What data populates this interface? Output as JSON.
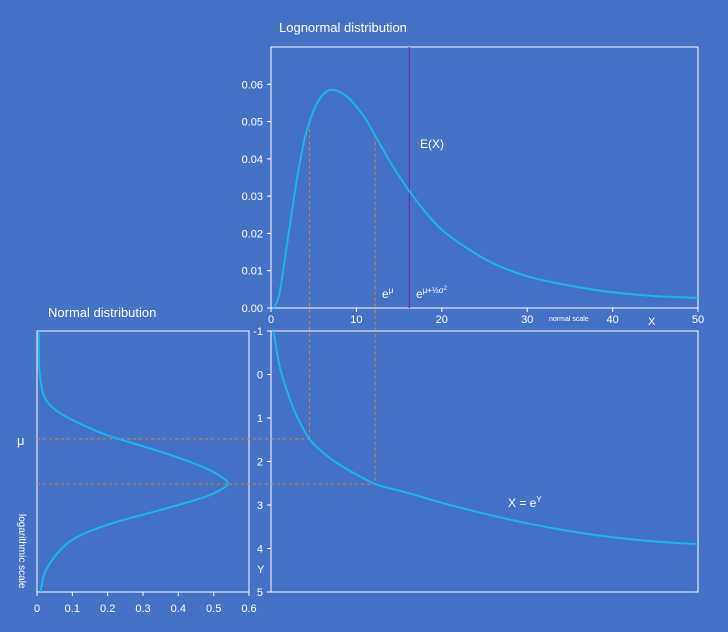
{
  "colors": {
    "background": "#4472C4",
    "frame": "#ffffff",
    "curve": "#1EB4F0",
    "guide": "#ED7D31",
    "mean_line": "#7030A0"
  },
  "chart_data": [
    {
      "id": "lognormal",
      "type": "line",
      "title": "Lognormal distribution",
      "xlabel": "X",
      "x_scale_note": "normal scale",
      "xlim": [
        0,
        50
      ],
      "ylim": [
        0,
        0.07
      ],
      "x_ticks": [
        "0",
        "10",
        "20",
        "30",
        "40",
        "50"
      ],
      "y_ticks": [
        "0.00",
        "0.01",
        "0.02",
        "0.03",
        "0.04",
        "0.05",
        "0.06"
      ],
      "x": [
        0.3,
        1,
        2,
        3,
        4,
        5,
        6,
        7,
        8,
        9,
        10,
        11,
        12,
        14,
        16,
        18,
        20,
        23,
        26,
        30,
        35,
        40,
        45,
        50
      ],
      "y": [
        0.0,
        0.004,
        0.019,
        0.034,
        0.046,
        0.053,
        0.057,
        0.0585,
        0.058,
        0.0565,
        0.054,
        0.051,
        0.047,
        0.039,
        0.032,
        0.026,
        0.021,
        0.016,
        0.012,
        0.0085,
        0.006,
        0.0042,
        0.0032,
        0.0027
      ],
      "annotations": {
        "median_label": "e",
        "median_sup": "μ",
        "mean_label": "e",
        "mean_sup": "μ+½σ",
        "mean_sup2": "2",
        "ex_label": "E(X)"
      },
      "median_x": 12.2,
      "mean_x": 16.2,
      "mode_guide_x": 4.5
    },
    {
      "id": "normal",
      "type": "line",
      "title": "Normal distribution",
      "ylabel_left": "logarithmic scale",
      "mu_label": "μ",
      "xlim": [
        0,
        0.6
      ],
      "ylim": [
        -1,
        5
      ],
      "x_ticks": [
        "0",
        "0.1",
        "0.2",
        "0.3",
        "0.4",
        "0.5",
        "0.6"
      ],
      "y": [
        -1,
        -0.5,
        0,
        0.5,
        0.8,
        1.0,
        1.2,
        1.4,
        1.6,
        1.8,
        2.0,
        2.2,
        2.4,
        2.5,
        2.6,
        2.8,
        3.0,
        3.2,
        3.4,
        3.6,
        3.8,
        4.0,
        4.3,
        4.6,
        5.0
      ],
      "x": [
        0.005,
        0.005,
        0.008,
        0.02,
        0.05,
        0.09,
        0.14,
        0.2,
        0.28,
        0.36,
        0.43,
        0.49,
        0.53,
        0.54,
        0.53,
        0.48,
        0.4,
        0.31,
        0.22,
        0.15,
        0.1,
        0.07,
        0.04,
        0.02,
        0.01
      ],
      "mu_y": 1.48,
      "mean_y": 2.52
    },
    {
      "id": "transform",
      "type": "line",
      "ylabel": "Y",
      "curve_label": "X = e",
      "curve_label_sup": "Y",
      "xlim": [
        0,
        50
      ],
      "ylim": [
        -1,
        5
      ],
      "y_ticks": [
        "-1",
        "0",
        "1",
        "2",
        "3",
        "4",
        "5"
      ],
      "x": [
        0.3,
        1,
        2,
        3,
        4.5,
        6,
        8,
        10,
        12.2,
        14,
        16,
        20,
        25,
        30,
        35,
        40,
        45,
        50
      ],
      "y": [
        -1,
        -0.2,
        0.45,
        0.95,
        1.48,
        1.78,
        2.07,
        2.3,
        2.52,
        2.62,
        2.72,
        2.95,
        3.2,
        3.42,
        3.6,
        3.74,
        3.84,
        3.9
      ]
    }
  ]
}
